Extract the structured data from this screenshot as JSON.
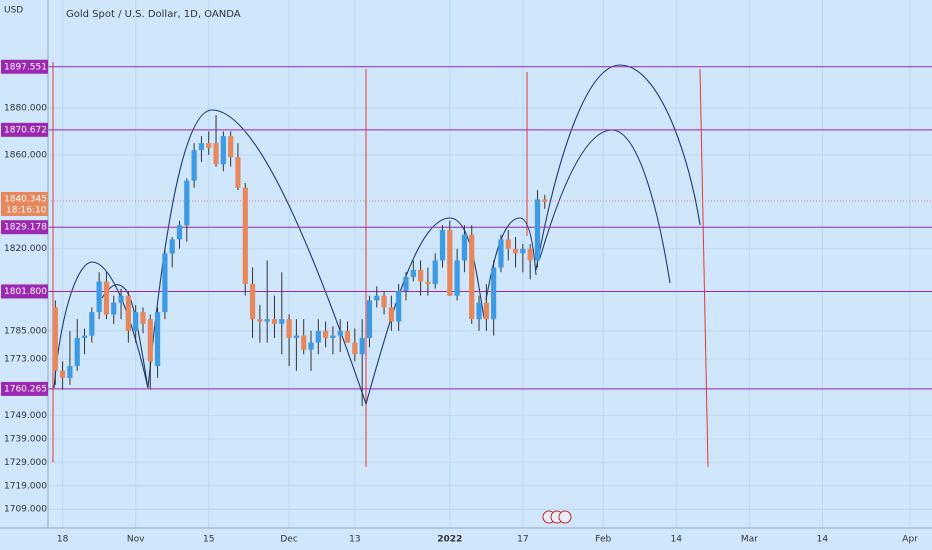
{
  "chart_data": {
    "type": "candlestick",
    "title": "Gold Spot / U.S. Dollar, 1D, OANDA",
    "currency": "USD",
    "up_color": "#3d9ae3",
    "down_color": "#e8875c",
    "level_color": "#9c27b0",
    "grid": true,
    "open": [
      1795,
      1768,
      1765,
      1770,
      1782,
      1783,
      1793,
      1806,
      1792,
      1797,
      1800,
      1785,
      1793,
      1790,
      1770,
      1793,
      1818,
      1824,
      1830,
      1849,
      1862,
      1865,
      1865,
      1856,
      1868,
      1859,
      1846,
      1805,
      1790,
      1789,
      1790,
      1788,
      1790,
      1782,
      1783,
      1777,
      1780,
      1785,
      1782,
      1783,
      1785,
      1780,
      1775,
      1782,
      1798,
      1800,
      1795,
      1789,
      1802,
      1808,
      1811,
      1806,
      1805,
      1815,
      1828,
      1800,
      1815,
      1826,
      1790,
      1797,
      1790,
      1812,
      1824,
      1820,
      1818,
      1820,
      1815,
      1841
    ],
    "high": [
      1798,
      1772,
      1785,
      1790,
      1786,
      1795,
      1810,
      1810,
      1800,
      1803,
      1802,
      1796,
      1795,
      1792,
      1795,
      1820,
      1825,
      1832,
      1850,
      1865,
      1868,
      1870,
      1877,
      1870,
      1870,
      1865,
      1848,
      1812,
      1796,
      1815,
      1800,
      1810,
      1792,
      1790,
      1790,
      1785,
      1790,
      1789,
      1787,
      1790,
      1789,
      1786,
      1790,
      1800,
      1804,
      1802,
      1800,
      1805,
      1810,
      1815,
      1815,
      1812,
      1818,
      1830,
      1832,
      1820,
      1830,
      1830,
      1800,
      1805,
      1815,
      1826,
      1828,
      1825,
      1822,
      1822,
      1845,
      1843
    ],
    "low": [
      1762,
      1760,
      1762,
      1768,
      1775,
      1780,
      1790,
      1790,
      1788,
      1790,
      1780,
      1780,
      1784,
      1760,
      1765,
      1790,
      1812,
      1820,
      1823,
      1846,
      1857,
      1860,
      1855,
      1853,
      1855,
      1845,
      1800,
      1782,
      1780,
      1780,
      1782,
      1775,
      1770,
      1768,
      1775,
      1768,
      1775,
      1778,
      1775,
      1776,
      1780,
      1772,
      1753,
      1778,
      1795,
      1792,
      1785,
      1785,
      1798,
      1806,
      1800,
      1800,
      1803,
      1812,
      1800,
      1798,
      1810,
      1788,
      1785,
      1785,
      1783,
      1810,
      1815,
      1812,
      1810,
      1807,
      1812,
      1837
    ],
    "close": [
      1768,
      1765,
      1770,
      1782,
      1783,
      1793,
      1806,
      1792,
      1797,
      1800,
      1785,
      1793,
      1788,
      1772,
      1793,
      1818,
      1824,
      1830,
      1849,
      1862,
      1865,
      1863,
      1856,
      1868,
      1859,
      1846,
      1805,
      1790,
      1789,
      1790,
      1788,
      1790,
      1782,
      1783,
      1777,
      1780,
      1785,
      1782,
      1783,
      1785,
      1780,
      1775,
      1782,
      1798,
      1800,
      1795,
      1789,
      1802,
      1808,
      1811,
      1806,
      1805,
      1815,
      1828,
      1800,
      1815,
      1826,
      1790,
      1797,
      1790,
      1812,
      1824,
      1820,
      1818,
      1820,
      1815,
      1841,
      1840
    ],
    "xlim": [
      -1,
      120
    ],
    "xticks": [
      {
        "value": 1,
        "label": "18"
      },
      {
        "value": 11,
        "label": "Nov"
      },
      {
        "value": 21,
        "label": "15"
      },
      {
        "value": 32,
        "label": "Dec"
      },
      {
        "value": 41,
        "label": "13"
      },
      {
        "value": 54,
        "label": "2022"
      },
      {
        "value": 64,
        "label": "17"
      },
      {
        "value": 75,
        "label": "Feb"
      },
      {
        "value": 85,
        "label": "14"
      },
      {
        "value": 95,
        "label": "Mar"
      },
      {
        "value": 105,
        "label": "14"
      },
      {
        "value": 117,
        "label": "Apr"
      }
    ],
    "ylim": [
      1701,
      1926
    ],
    "yticks": [
      {
        "value": 1709,
        "label": "1709.000"
      },
      {
        "value": 1719,
        "label": "1719.000"
      },
      {
        "value": 1729,
        "label": "1729.000"
      },
      {
        "value": 1739,
        "label": "1739.000"
      },
      {
        "value": 1749,
        "label": "1749.000"
      },
      {
        "value": 1773,
        "label": "1773.000"
      },
      {
        "value": 1785,
        "label": "1785.000"
      },
      {
        "value": 1820,
        "label": "1820.000"
      },
      {
        "value": 1860,
        "label": "1860.000"
      },
      {
        "value": 1880,
        "label": "1880.000"
      }
    ],
    "levels": [
      1897.551,
      1870.672,
      1829.178,
      {
        "value": 1801.8,
        "label": "1801.800"
      },
      1760.265
    ],
    "last_price": 1840.345,
    "countdown": "18:16:10"
  }
}
